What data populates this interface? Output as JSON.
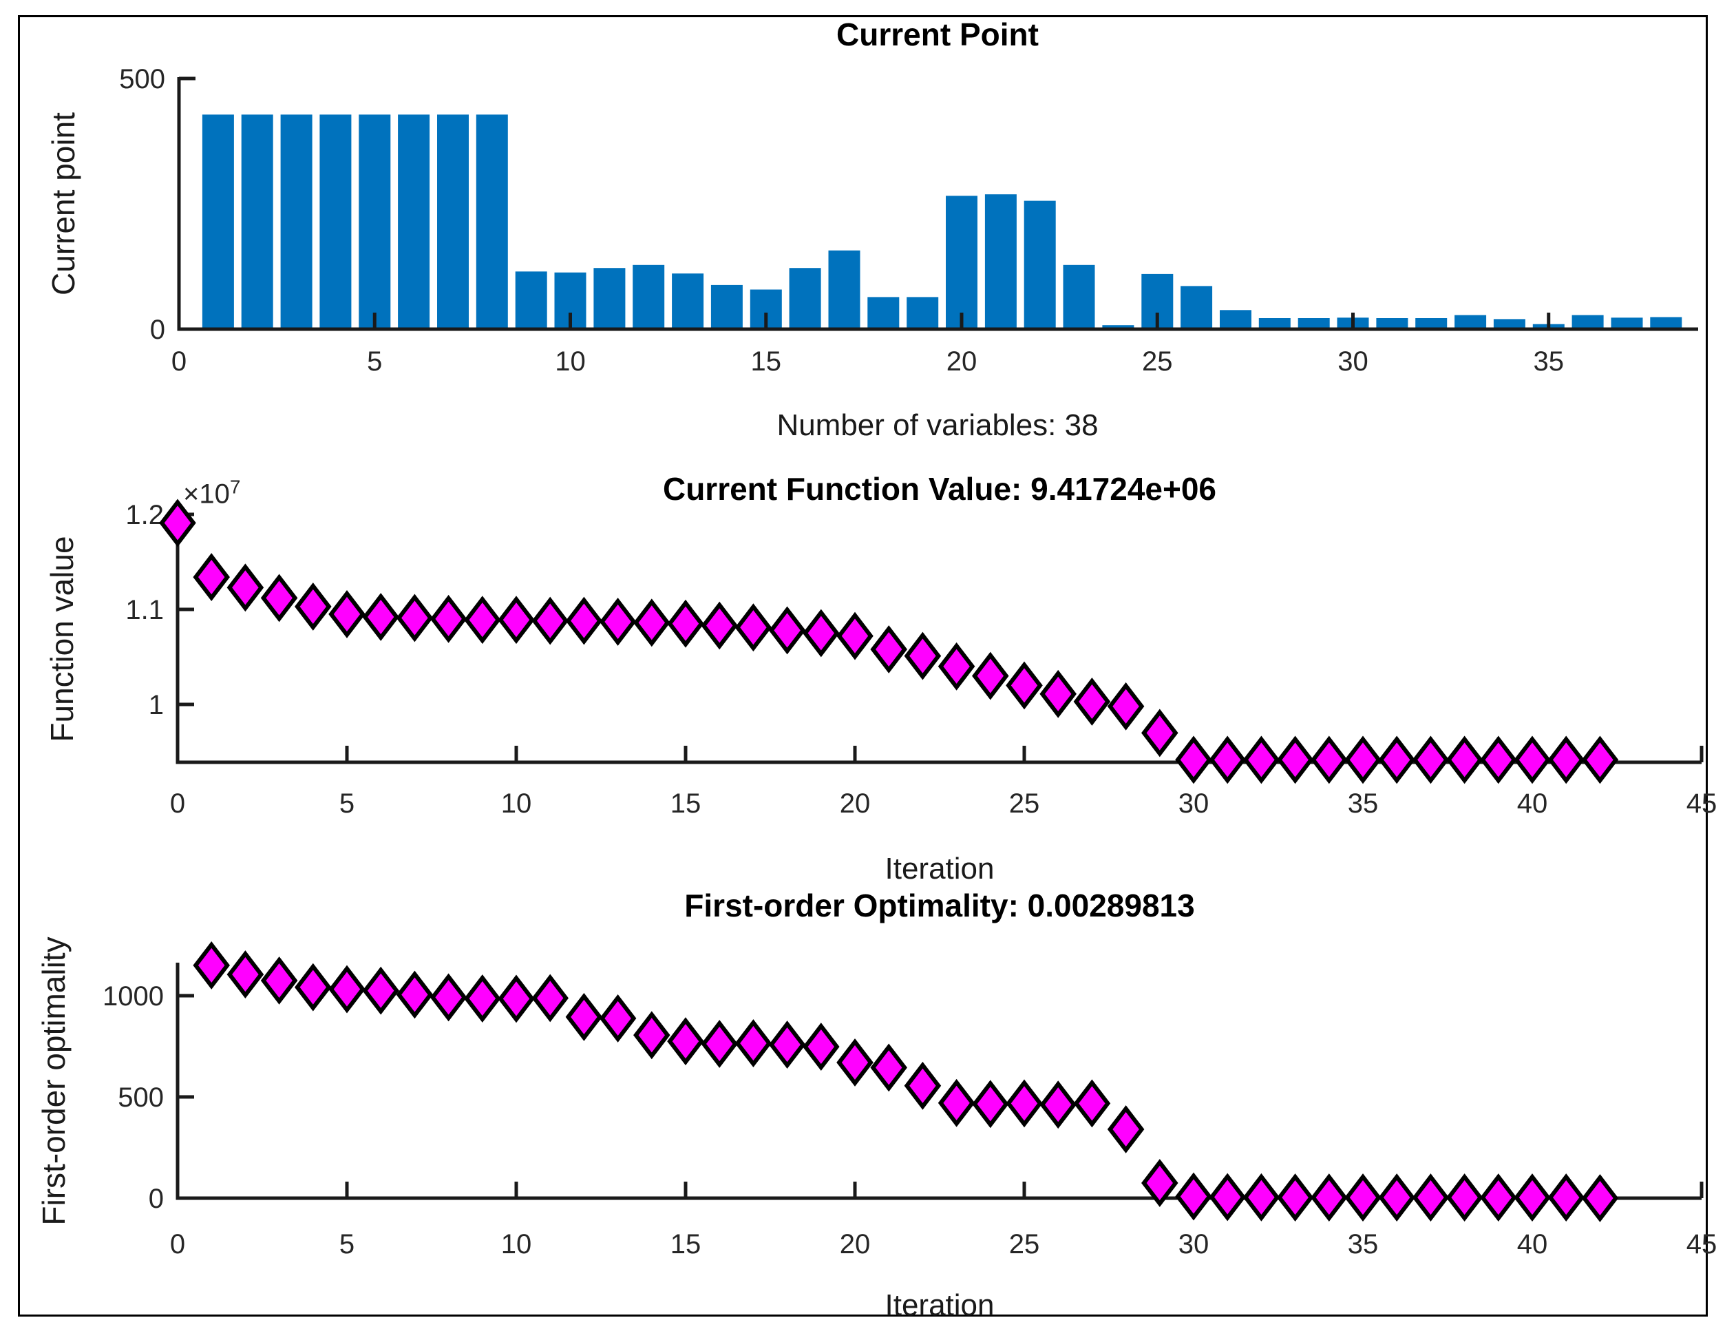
{
  "figure": {
    "background": "#ffffff",
    "border_color": "#000000"
  },
  "colors": {
    "bar": "#0072BD",
    "marker_fill": "#FF00FF",
    "marker_stroke": "#000000",
    "axis": "#1a1a1a",
    "tick_text": "#262626",
    "title_text": "#000000"
  },
  "chart_data": [
    {
      "type": "bar",
      "title": "Current Point",
      "xlabel": "Number of variables: 38",
      "ylabel": "Current point",
      "num_variables": 38,
      "grid": false,
      "legend": null,
      "xlim": [
        0,
        38.9
      ],
      "ylim": [
        0,
        500
      ],
      "xticks": [
        0,
        5,
        10,
        15,
        20,
        25,
        30,
        35
      ],
      "yticks": [
        {
          "value": 0,
          "label": "0"
        },
        {
          "value": 500,
          "label": "500"
        }
      ],
      "categories": [
        1,
        2,
        3,
        4,
        5,
        6,
        7,
        8,
        9,
        10,
        11,
        12,
        13,
        14,
        15,
        16,
        17,
        18,
        19,
        20,
        21,
        22,
        23,
        24,
        25,
        26,
        27,
        28,
        29,
        30,
        31,
        32,
        33,
        34,
        35,
        36,
        37,
        38
      ],
      "values": [
        428,
        428,
        428,
        428,
        428,
        428,
        428,
        428,
        115,
        113,
        122,
        128,
        111,
        88,
        79,
        122,
        157,
        64,
        64,
        266,
        269,
        256,
        128,
        8,
        110,
        86,
        38,
        22,
        22,
        23,
        22,
        22,
        28,
        20,
        10,
        28,
        23,
        24
      ]
    },
    {
      "type": "scatter",
      "title": "Current Function Value: 9.41724e+06",
      "current_value": "9.41724e+06",
      "xlabel": "Iteration",
      "ylabel": "Function value",
      "y_exponent": {
        "base": "×10",
        "power": "7"
      },
      "marker": "diamond",
      "grid": false,
      "legend": null,
      "xlim": [
        0,
        45
      ],
      "ylim": [
        9390000,
        12150000
      ],
      "xticks": [
        0,
        5,
        10,
        15,
        20,
        25,
        30,
        35,
        40,
        45
      ],
      "yticks": [
        {
          "value": 10000000,
          "label": "1"
        },
        {
          "value": 11000000,
          "label": "1.1"
        },
        {
          "value": 12000000,
          "label": "1.2"
        }
      ],
      "x": [
        0,
        1,
        2,
        3,
        4,
        5,
        6,
        7,
        8,
        9,
        10,
        11,
        12,
        13,
        14,
        15,
        16,
        17,
        18,
        19,
        20,
        21,
        22,
        23,
        24,
        25,
        26,
        27,
        28,
        29,
        30,
        31,
        32,
        33,
        34,
        35,
        36,
        37,
        38,
        39,
        40,
        41,
        42
      ],
      "y": [
        11910000,
        11340000,
        11230000,
        11120000,
        11030000,
        10950000,
        10920000,
        10910000,
        10900000,
        10890000,
        10890000,
        10880000,
        10880000,
        10870000,
        10860000,
        10850000,
        10830000,
        10810000,
        10780000,
        10750000,
        10720000,
        10580000,
        10510000,
        10400000,
        10300000,
        10200000,
        10110000,
        10030000,
        9980000,
        9700000,
        9417240,
        9417240,
        9417240,
        9417240,
        9417240,
        9417240,
        9417240,
        9417240,
        9417240,
        9417240,
        9417240,
        9417240,
        9417240
      ]
    },
    {
      "type": "scatter",
      "title": "First-order Optimality: 0.00289813",
      "current_value": "0.00289813",
      "xlabel": "Iteration",
      "ylabel": "First-order optimality",
      "marker": "diamond",
      "grid": false,
      "legend": null,
      "xlim": [
        0,
        45
      ],
      "ylim": [
        0,
        1165
      ],
      "xticks": [
        0,
        5,
        10,
        15,
        20,
        25,
        30,
        35,
        40,
        45
      ],
      "yticks": [
        {
          "value": 0,
          "label": "0"
        },
        {
          "value": 500,
          "label": "500"
        },
        {
          "value": 1000,
          "label": "1000"
        }
      ],
      "x": [
        1,
        2,
        3,
        4,
        5,
        6,
        7,
        8,
        9,
        10,
        11,
        12,
        13,
        14,
        15,
        16,
        17,
        18,
        19,
        20,
        21,
        22,
        23,
        24,
        25,
        26,
        27,
        28,
        29,
        30,
        31,
        32,
        33,
        34,
        35,
        36,
        37,
        38,
        39,
        40,
        41,
        42
      ],
      "y": [
        1150,
        1105,
        1075,
        1042,
        1032,
        1025,
        1005,
        992,
        986,
        985,
        988,
        895,
        888,
        805,
        775,
        762,
        765,
        758,
        748,
        670,
        645,
        555,
        470,
        465,
        468,
        462,
        468,
        340,
        75,
        8,
        5,
        4,
        3,
        3,
        3,
        3,
        3,
        3,
        3,
        3,
        3,
        0.0029
      ]
    }
  ]
}
